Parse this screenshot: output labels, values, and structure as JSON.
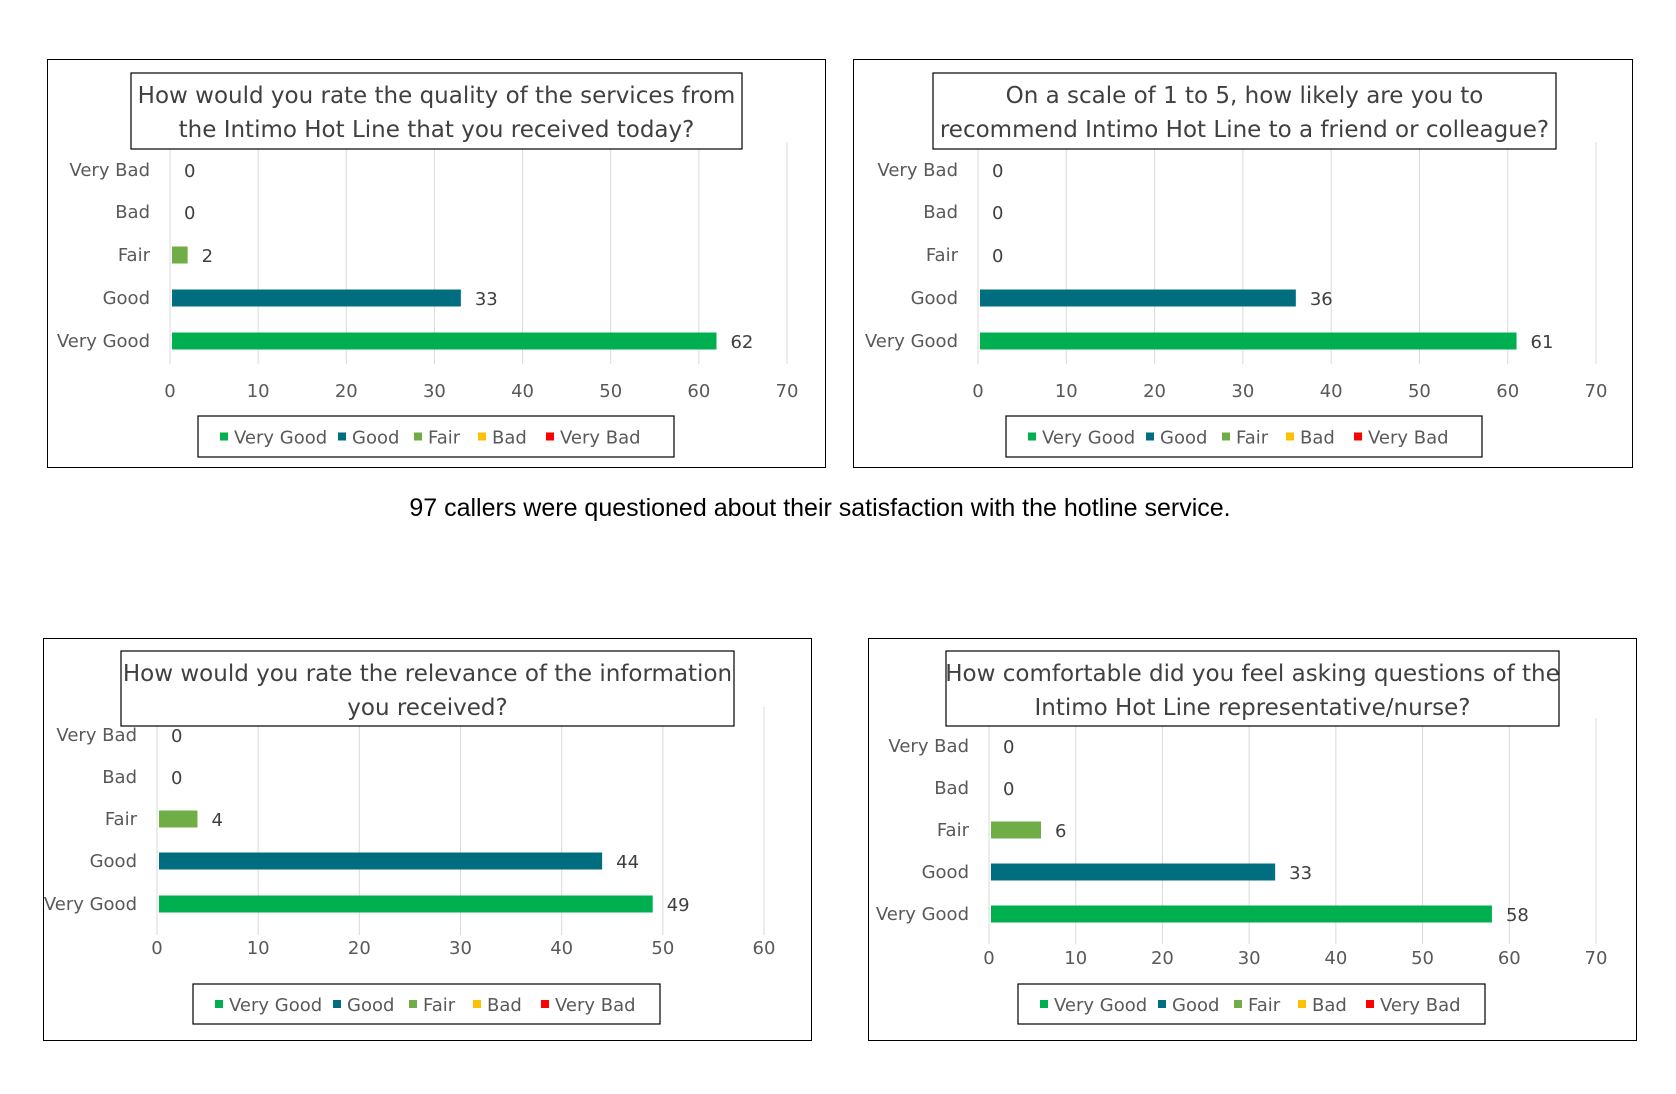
{
  "caption": "97 callers were questioned about their satisfaction with the hotline service.",
  "colors": {
    "very_good": "#00B050",
    "good": "#006E7F",
    "fair": "#70AD47",
    "bad": "#FFC000",
    "very_bad": "#FF0000",
    "gridline": "#D9D9D9",
    "axis_text": "#595959"
  },
  "chart_data": [
    {
      "type": "bar",
      "orientation": "horizontal",
      "title_lines": [
        "How would you rate the quality of the services from",
        "the Intimo Hot Line that you received today?"
      ],
      "categories": [
        "Very Bad",
        "Bad",
        "Fair",
        "Good",
        "Very Good"
      ],
      "values": [
        0,
        0,
        2,
        33,
        62
      ],
      "bar_colors": [
        "#FF0000",
        "#FFC000",
        "#70AD47",
        "#006E7F",
        "#00B050"
      ],
      "xlim": [
        0,
        70
      ],
      "xticks": [
        0,
        10,
        20,
        30,
        40,
        50,
        60,
        70
      ],
      "grid": true,
      "legend": [
        "Very Good",
        "Good",
        "Fair",
        "Bad",
        "Very Bad"
      ],
      "legend_position": "bottom"
    },
    {
      "type": "bar",
      "orientation": "horizontal",
      "title_lines": [
        "On a scale of 1 to 5, how likely are you to",
        "recommend Intimo Hot Line to a friend or colleague?"
      ],
      "categories": [
        "Very Bad",
        "Bad",
        "Fair",
        "Good",
        "Very Good"
      ],
      "values": [
        0,
        0,
        0,
        36,
        61
      ],
      "bar_colors": [
        "#FF0000",
        "#FFC000",
        "#70AD47",
        "#006E7F",
        "#00B050"
      ],
      "xlim": [
        0,
        70
      ],
      "xticks": [
        0,
        10,
        20,
        30,
        40,
        50,
        60,
        70
      ],
      "grid": true,
      "legend": [
        "Very Good",
        "Good",
        "Fair",
        "Bad",
        "Very Bad"
      ],
      "legend_position": "bottom"
    },
    {
      "type": "bar",
      "orientation": "horizontal",
      "title_lines": [
        "How would you rate the relevance of the information",
        "you received?"
      ],
      "categories": [
        "Very Bad",
        "Bad",
        "Fair",
        "Good",
        "Very Good"
      ],
      "values": [
        0,
        0,
        4,
        44,
        49
      ],
      "bar_colors": [
        "#FF0000",
        "#FFC000",
        "#70AD47",
        "#006E7F",
        "#00B050"
      ],
      "xlim": [
        0,
        60
      ],
      "xticks": [
        0,
        10,
        20,
        30,
        40,
        50,
        60
      ],
      "grid": true,
      "legend": [
        "Very Good",
        "Good",
        "Fair",
        "Bad",
        "Very Bad"
      ],
      "legend_position": "bottom"
    },
    {
      "type": "bar",
      "orientation": "horizontal",
      "title_lines": [
        "How comfortable did you feel asking questions of the",
        "Intimo Hot Line representative/nurse?"
      ],
      "categories": [
        "Very Bad",
        "Bad",
        "Fair",
        "Good",
        "Very Good"
      ],
      "values": [
        0,
        0,
        6,
        33,
        58
      ],
      "bar_colors": [
        "#FF0000",
        "#FFC000",
        "#70AD47",
        "#006E7F",
        "#00B050"
      ],
      "xlim": [
        0,
        70
      ],
      "xticks": [
        0,
        10,
        20,
        30,
        40,
        50,
        60,
        70
      ],
      "grid": true,
      "legend": [
        "Very Good",
        "Good",
        "Fair",
        "Bad",
        "Very Bad"
      ],
      "legend_position": "bottom"
    }
  ]
}
